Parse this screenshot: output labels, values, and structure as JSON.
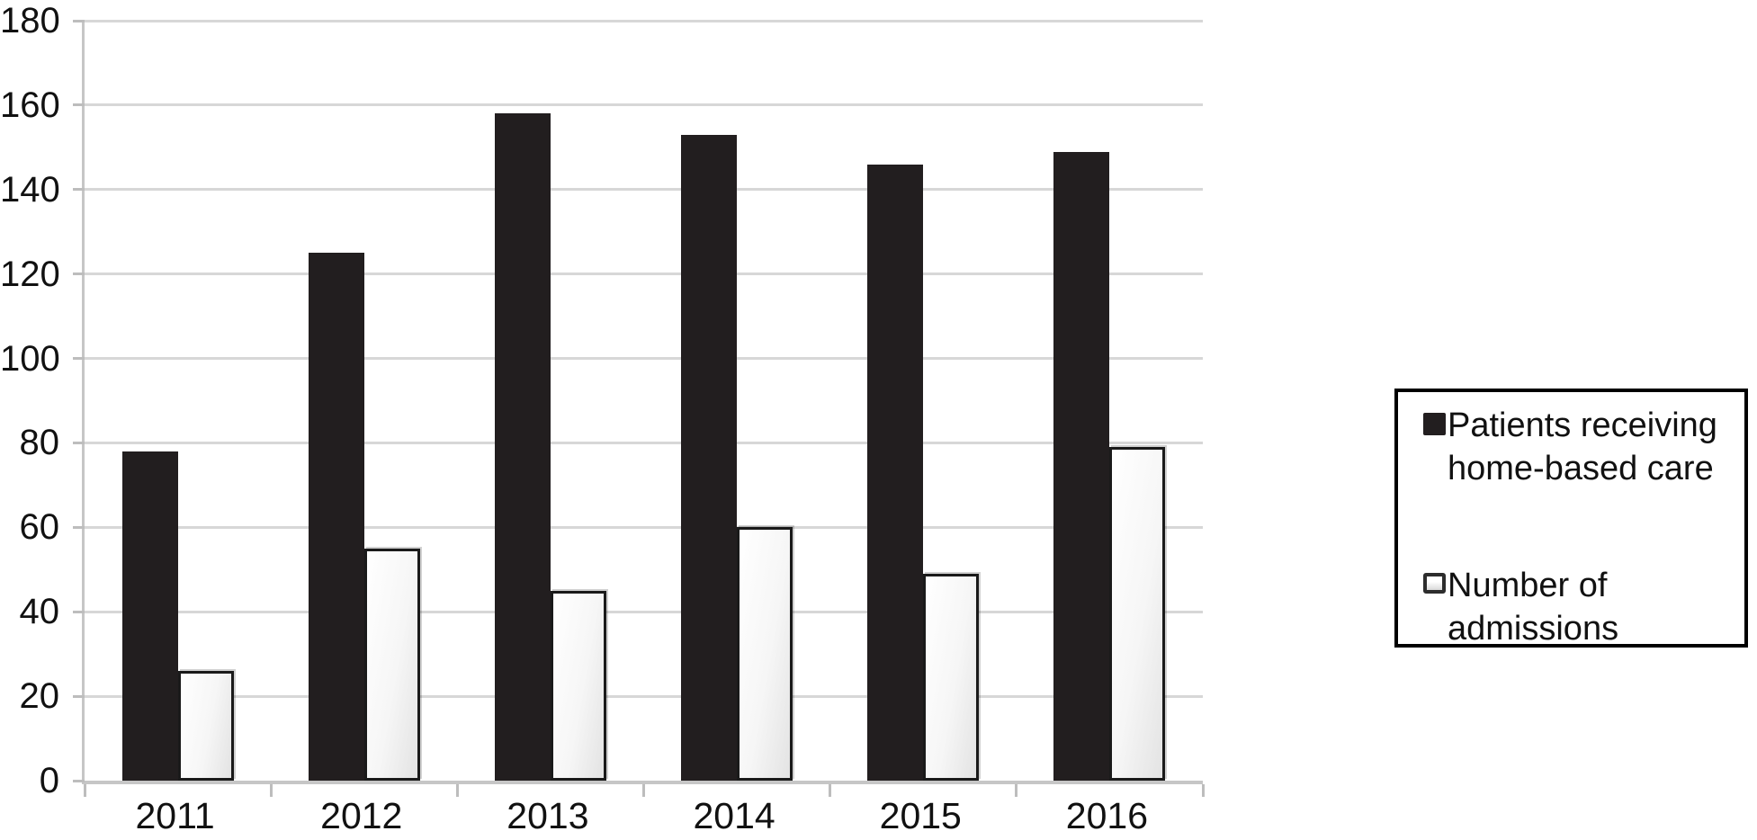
{
  "chart_data": {
    "type": "bar",
    "title": "",
    "xlabel": "",
    "ylabel": "",
    "categories": [
      "2011",
      "2012",
      "2013",
      "2014",
      "2015",
      "2016"
    ],
    "series": [
      {
        "name": "Patients receiving home-based care",
        "label_lines": [
          "Patients receiving",
          "home-based care"
        ],
        "values": [
          78,
          125,
          158,
          153,
          146,
          149
        ],
        "color": "#221e1f",
        "swatch": "solid-black-square"
      },
      {
        "name": "Number of admissions",
        "label_lines": [
          "Number of",
          "admissions"
        ],
        "values": [
          26,
          55,
          45,
          60,
          49,
          79
        ],
        "color": "#f2f2f2",
        "swatch": "light-outlined-square"
      }
    ],
    "ylim": [
      0,
      180
    ],
    "yticks": [
      0,
      20,
      40,
      60,
      80,
      100,
      120,
      140,
      160,
      180
    ],
    "grid": "horizontal",
    "legend_position": "right",
    "colors": {
      "gridline": "#d7d7d7",
      "axis": "#c6c6c6",
      "text": "#111111",
      "background": "#ffffff",
      "legend_border": "#000000"
    }
  }
}
